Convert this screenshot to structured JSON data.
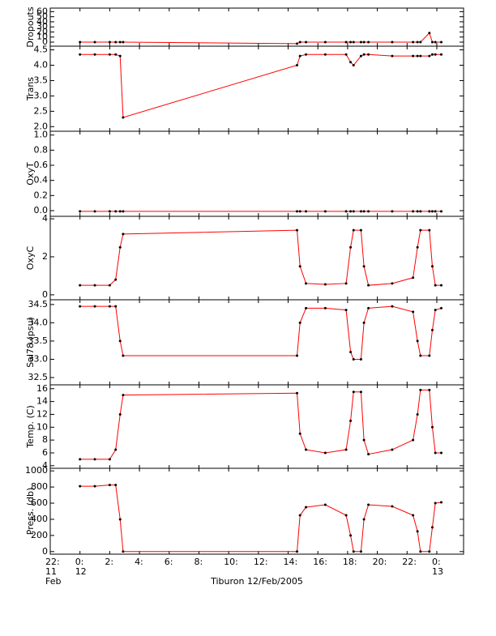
{
  "chart_data": {
    "type": "line",
    "xlabel": "Tiburon 12/Feb/2005",
    "line_color": "#ff0000",
    "marker_color": "#000000",
    "x": [
      0,
      1,
      2,
      2.4,
      2.7,
      2.9,
      14.6,
      14.8,
      15.2,
      16.5,
      17.9,
      18.2,
      18.4,
      18.9,
      19.1,
      19.4,
      21,
      22.4,
      22.7,
      22.9,
      23.5,
      23.7,
      23.9,
      24.3
    ],
    "xlim": [
      -2,
      25.8
    ],
    "xticks": [
      {
        "value": -2,
        "label": "22:\n11\nFeb"
      },
      {
        "value": 0,
        "label": "0:\n12"
      },
      {
        "value": 2,
        "label": "2:"
      },
      {
        "value": 4,
        "label": "4:"
      },
      {
        "value": 6,
        "label": "6:"
      },
      {
        "value": 8,
        "label": "8:"
      },
      {
        "value": 10,
        "label": "10:"
      },
      {
        "value": 12,
        "label": "12:"
      },
      {
        "value": 14,
        "label": "14:"
      },
      {
        "value": 16,
        "label": "16:"
      },
      {
        "value": 18,
        "label": "18:"
      },
      {
        "value": 20,
        "label": "20:"
      },
      {
        "value": 22,
        "label": "22:"
      },
      {
        "value": 24,
        "label": "0:\n13"
      }
    ],
    "panels": [
      {
        "ylabel": "Dropouts",
        "ylim": [
          -8,
          67
        ],
        "yticks": [
          0,
          10,
          20,
          30,
          40,
          50,
          60
        ],
        "values": [
          0,
          0,
          0,
          0,
          0,
          0,
          -3,
          0,
          0,
          0,
          0,
          0,
          0,
          0,
          0,
          0,
          0,
          0,
          0,
          0,
          18,
          0,
          0,
          0
        ]
      },
      {
        "ylabel": "Trans",
        "ylim": [
          1.85,
          4.62
        ],
        "yticks": [
          {
            "value": 2,
            "label": "2.0"
          },
          2.5,
          {
            "value": 3,
            "label": "3.0"
          },
          3.5,
          {
            "value": 4,
            "label": "4.0"
          },
          4.5
        ],
        "values": [
          4.35,
          4.35,
          4.35,
          4.35,
          4.3,
          2.3,
          4.0,
          4.3,
          4.35,
          4.35,
          4.35,
          4.1,
          4.0,
          4.3,
          4.35,
          4.35,
          4.3,
          4.3,
          4.3,
          4.3,
          4.3,
          4.35,
          4.35,
          4.35
        ]
      },
      {
        "ylabel": "OxyT",
        "ylim": [
          -0.075,
          1.05
        ],
        "yticks": [
          {
            "value": 0,
            "label": "0.0"
          },
          0.2,
          0.4,
          0.6,
          0.8,
          {
            "value": 1,
            "label": "1.0"
          }
        ],
        "values": [
          -0.01,
          -0.01,
          -0.01,
          -0.01,
          -0.01,
          -0.01,
          -0.01,
          -0.01,
          -0.01,
          -0.01,
          -0.01,
          -0.01,
          -0.01,
          -0.01,
          -0.01,
          -0.01,
          -0.01,
          -0.01,
          -0.01,
          -0.01,
          -0.01,
          -0.01,
          -0.01,
          -0.01
        ]
      },
      {
        "ylabel": "OxyC",
        "ylim": [
          -0.26,
          4.13
        ],
        "yticks": [
          0,
          2,
          4
        ],
        "values": [
          0.5,
          0.5,
          0.5,
          0.8,
          2.5,
          3.2,
          3.4,
          1.5,
          0.6,
          0.55,
          0.6,
          2.5,
          3.4,
          3.4,
          1.5,
          0.5,
          0.6,
          0.9,
          2.5,
          3.4,
          3.4,
          1.5,
          0.5,
          0.5
        ]
      },
      {
        "ylabel": "Sal78 (psu)",
        "ylim": [
          32.3,
          34.63
        ],
        "yticks": [
          32.5,
          {
            "value": 33,
            "label": "33.0"
          },
          33.5,
          {
            "value": 34,
            "label": "34.0"
          },
          34.5
        ],
        "values": [
          34.45,
          34.45,
          34.45,
          34.45,
          33.5,
          33.1,
          33.1,
          34.0,
          34.4,
          34.4,
          34.35,
          33.2,
          33.0,
          33.0,
          34.0,
          34.4,
          34.45,
          34.3,
          33.5,
          33.1,
          33.1,
          33.8,
          34.35,
          34.4
        ]
      },
      {
        "ylabel": "Temp. (C)",
        "ylim": [
          3.6,
          16.6
        ],
        "yticks": [
          4,
          6,
          8,
          10,
          12,
          14,
          16
        ],
        "values": [
          5,
          5,
          5,
          6.5,
          12,
          15,
          15.3,
          9,
          6.5,
          6,
          6.5,
          11,
          15.5,
          15.5,
          8,
          5.8,
          6.5,
          8,
          12,
          15.8,
          15.8,
          10,
          6,
          6
        ]
      },
      {
        "ylabel": "Press. (db)",
        "ylim": [
          -32,
          1032
        ],
        "yticks": [
          0,
          200,
          400,
          600,
          800,
          1000
        ],
        "values": [
          810,
          810,
          825,
          825,
          400,
          0,
          0,
          450,
          550,
          580,
          450,
          200,
          0,
          0,
          400,
          580,
          560,
          450,
          250,
          0,
          0,
          300,
          600,
          610
        ]
      }
    ]
  }
}
